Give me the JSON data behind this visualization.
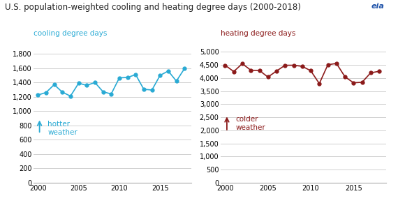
{
  "title": "U.S. population-weighted cooling and heating degree days (2000-2018)",
  "title_fontsize": 8.5,
  "cooling_label": "cooling degree days",
  "heating_label": "heating degree days",
  "cooling_color": "#29aad4",
  "heating_color": "#8b1a1a",
  "years": [
    2000,
    2001,
    2002,
    2003,
    2004,
    2005,
    2006,
    2007,
    2008,
    2009,
    2010,
    2011,
    2012,
    2013,
    2014,
    2015,
    2016,
    2017,
    2018
  ],
  "cooling_values": [
    1225,
    1260,
    1370,
    1265,
    1210,
    1390,
    1360,
    1400,
    1270,
    1240,
    1465,
    1470,
    1510,
    1305,
    1295,
    1500,
    1560,
    1420,
    1595
  ],
  "heating_values": [
    4490,
    4250,
    4550,
    4300,
    4290,
    4040,
    4270,
    4490,
    4490,
    4450,
    4280,
    3790,
    4510,
    4560,
    4050,
    3820,
    3840,
    4200,
    4260
  ],
  "cooling_ylim": [
    0,
    1900
  ],
  "cooling_yticks": [
    0,
    200,
    400,
    600,
    800,
    1000,
    1200,
    1400,
    1600,
    1800
  ],
  "heating_ylim": [
    0,
    5200
  ],
  "heating_yticks": [
    0,
    500,
    1000,
    1500,
    2000,
    2500,
    3000,
    3500,
    4000,
    4500,
    5000
  ],
  "xlim": [
    1999.5,
    2018.8
  ],
  "xticks": [
    2000,
    2005,
    2010,
    2015
  ],
  "grid_color": "#d0d0d0",
  "bg_color": "#ffffff",
  "hotter_text": "hotter\nweather",
  "colder_text": "colder\nweather"
}
